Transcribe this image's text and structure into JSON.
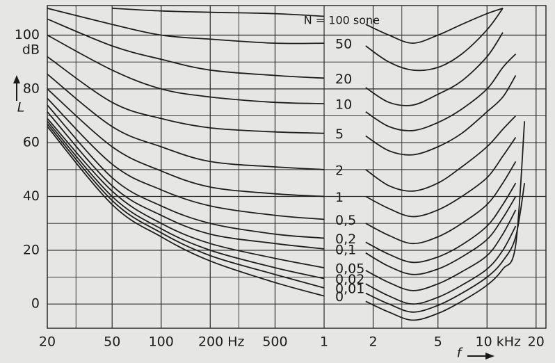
{
  "chart_data": {
    "type": "line",
    "ylabel": "L",
    "y_unit": "dB",
    "xlabel": "f",
    "log_x": true,
    "grid": true,
    "color": "#1e1e1e",
    "xlim": [
      20,
      23000
    ],
    "ylim": [
      -9,
      111
    ],
    "xticks": [
      20,
      50,
      100,
      {
        "value": 200,
        "label": "200 Hz"
      },
      500,
      {
        "value": 1000,
        "label": "1"
      },
      {
        "value": 2000,
        "label": "2"
      },
      {
        "value": 5000,
        "label": "5"
      },
      {
        "value": 10000,
        "label": "10 kHz"
      },
      {
        "value": 20000,
        "label": "20"
      }
    ],
    "minor_xticks": [
      30,
      300,
      3000
    ],
    "yticks": [
      0,
      20,
      40,
      60,
      80,
      100
    ],
    "minor_yticks": [
      10,
      30,
      50,
      70,
      90
    ],
    "x": [
      20,
      50,
      100,
      200,
      500,
      1000,
      1400,
      1800,
      2500,
      3500,
      5000,
      7000,
      10000,
      12500,
      15000,
      17000
    ],
    "series": [
      {
        "name": "N = 100 sone",
        "values": [
          null,
          110,
          109,
          108.5,
          108,
          107,
          null,
          104,
          100,
          97,
          100,
          104,
          108,
          110,
          null,
          null
        ]
      },
      {
        "name": "50",
        "values": [
          110,
          104,
          100,
          98.5,
          97,
          97,
          null,
          96,
          90,
          87,
          88,
          93,
          102,
          110,
          null,
          null
        ]
      },
      {
        "name": "20",
        "values": [
          106,
          96,
          91,
          87,
          85,
          84,
          null,
          80.5,
          75,
          74,
          78,
          83,
          92,
          101,
          null,
          null
        ]
      },
      {
        "name": "10",
        "values": [
          100,
          87,
          80,
          77,
          75,
          74.5,
          null,
          71.5,
          66,
          64.5,
          67.5,
          72.5,
          80,
          88,
          93,
          null
        ]
      },
      {
        "name": "5",
        "values": [
          92,
          75,
          69,
          65.5,
          64,
          63.5,
          null,
          62.5,
          57,
          55.5,
          58.5,
          63.5,
          71.5,
          77,
          85,
          null
        ]
      },
      {
        "name": "2",
        "values": [
          85.5,
          66,
          58.5,
          53,
          51,
          50,
          null,
          50,
          44,
          42,
          45,
          51,
          58.5,
          65,
          70,
          null
        ]
      },
      {
        "name": "1",
        "values": [
          80,
          58.5,
          49.5,
          43.5,
          41,
          40,
          null,
          40,
          35.5,
          32.5,
          35,
          40,
          47,
          55,
          62,
          null
        ]
      },
      {
        "name": "0,5",
        "values": [
          76.5,
          52,
          42.5,
          36.5,
          33,
          31.5,
          null,
          30,
          25.5,
          22.5,
          25,
          30,
          37,
          45,
          53,
          null
        ]
      },
      {
        "name": "0,2",
        "values": [
          74,
          47,
          36.5,
          30,
          26,
          24.5,
          null,
          23,
          18.5,
          15.5,
          17.5,
          22,
          29,
          37,
          45,
          null
        ]
      },
      {
        "name": "0,1",
        "values": [
          71.5,
          44,
          33,
          26,
          22.5,
          20.5,
          null,
          19,
          14,
          11,
          13,
          17.5,
          24,
          32,
          40,
          null
        ]
      },
      {
        "name": "0,05",
        "values": [
          69,
          42,
          30,
          22.5,
          17,
          13.5,
          null,
          12.5,
          8,
          5,
          7.5,
          12,
          18,
          26,
          35,
          null
        ]
      },
      {
        "name": "0,02",
        "values": [
          68,
          40,
          28,
          20,
          13.5,
          9.5,
          null,
          7.5,
          3,
          0,
          2.5,
          7,
          13,
          20,
          29,
          null
        ]
      },
      {
        "name": "0,01",
        "values": [
          67,
          38.5,
          26.5,
          18,
          11,
          6,
          null,
          4,
          0,
          -3,
          -0.5,
          4,
          10,
          16,
          25,
          45
        ]
      },
      {
        "name": "0",
        "values": [
          66,
          37,
          25,
          16,
          8,
          3,
          null,
          1,
          -3,
          -6,
          -3.5,
          1,
          7,
          13,
          22,
          68
        ]
      }
    ]
  }
}
